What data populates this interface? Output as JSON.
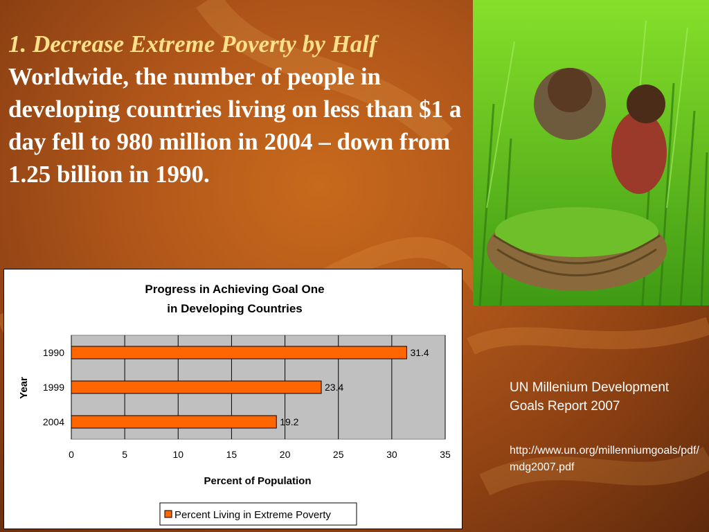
{
  "slide": {
    "title": "1. Decrease Extreme Poverty by Half",
    "body": "Worldwide, the number of people in developing countries living on less than $1 a day fell to 980 million in 2004 – down from 1.25 billion in 1990.",
    "source_label": "UN Millenium Development Goals Report 2007",
    "source_url": "http://www.un.org/millenniumgoals/pdf/mdg2007.pdf"
  },
  "chart_data": {
    "type": "bar",
    "orientation": "horizontal",
    "title_line1": "Progress in Achieving Goal One",
    "title_line2": "in Developing Countries",
    "categories": [
      "1990",
      "1999",
      "2004"
    ],
    "values": [
      31.4,
      23.4,
      19.2
    ],
    "value_labels": [
      "31.4",
      "23.4",
      "19.2"
    ],
    "xlabel": "Percent of Population",
    "ylabel": "Year",
    "xlim": [
      0,
      35
    ],
    "xticks": [
      "0",
      "5",
      "10",
      "15",
      "20",
      "25",
      "30",
      "35"
    ],
    "series_name": "Percent Living in Extreme Poverty",
    "grid": "vertical",
    "legend_position": "bottom",
    "colors": {
      "bar": "#ff6600",
      "plot_bg": "#c0c0c0"
    }
  }
}
